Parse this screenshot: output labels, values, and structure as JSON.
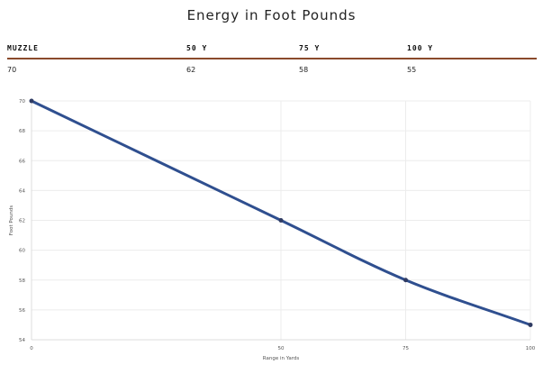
{
  "table": {
    "headers": [
      "MUZZLE",
      "50 Y",
      "75 Y",
      "100 Y"
    ],
    "values": [
      "70",
      "62",
      "58",
      "55"
    ]
  },
  "chart_data": {
    "type": "line",
    "title": "Energy in Foot Pounds",
    "xlabel": "Range in Yards",
    "ylabel": "Foot Pounds",
    "x": [
      0,
      50,
      75,
      100
    ],
    "series": [
      {
        "values": [
          70,
          62,
          58,
          55
        ],
        "color": "#2f4f8f"
      }
    ],
    "xticks": [
      0,
      50,
      75,
      100
    ],
    "yticks": [
      54,
      56,
      58,
      60,
      62,
      64,
      66,
      68,
      70
    ],
    "xlim": [
      0,
      100
    ],
    "ylim": [
      54,
      70
    ],
    "grid": true,
    "legend": "none"
  }
}
